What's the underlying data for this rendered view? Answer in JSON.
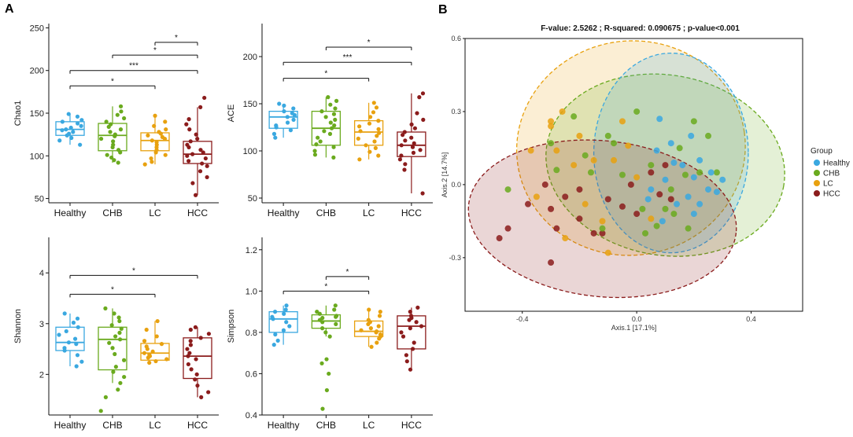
{
  "panel_a_label": "A",
  "panel_b_label": "B",
  "colors": {
    "Healthy": "#3aa8e0",
    "CHB": "#6aaa1e",
    "LC": "#e8a10f",
    "HCC": "#8b1c1c"
  },
  "chart_data": [
    {
      "type": "box",
      "ylabel": "Chao1",
      "categories": [
        "Healthy",
        "CHB",
        "LC",
        "HCC"
      ],
      "ylim": [
        45,
        255
      ],
      "yticks": [
        50,
        100,
        150,
        200,
        250
      ],
      "boxes": [
        {
          "group": "Healthy",
          "min": 113,
          "q1": 124,
          "median": 131,
          "q3": 140,
          "max": 149
        },
        {
          "group": "CHB",
          "min": 92,
          "q1": 106,
          "median": 124,
          "q3": 138,
          "max": 158
        },
        {
          "group": "LC",
          "min": 90,
          "q1": 106,
          "median": 118,
          "q3": 127,
          "max": 147
        },
        {
          "group": "HCC",
          "min": 54,
          "q1": 91,
          "median": 102,
          "q3": 117,
          "max": 157
        }
      ],
      "points": {
        "Healthy": [
          113,
          118,
          121,
          124,
          126,
          128,
          130,
          131,
          133,
          135,
          138,
          140,
          142,
          146,
          149
        ],
        "CHB": [
          92,
          95,
          98,
          101,
          104,
          107,
          110,
          113,
          117,
          120,
          123,
          125,
          128,
          131,
          134,
          137,
          140,
          144,
          148,
          152,
          158
        ],
        "LC": [
          90,
          93,
          97,
          101,
          104,
          107,
          110,
          113,
          116,
          118,
          120,
          122,
          124,
          126,
          128,
          131,
          135,
          140,
          147
        ],
        "HCC": [
          54,
          68,
          75,
          82,
          88,
          91,
          94,
          97,
          100,
          102,
          104,
          107,
          110,
          113,
          117,
          120,
          125,
          131,
          137,
          143,
          157,
          168
        ]
      },
      "comparisons": [
        {
          "from": "LC",
          "to": "HCC",
          "label": "*",
          "y": 233
        },
        {
          "from": "CHB",
          "to": "HCC",
          "label": "*",
          "y": 218
        },
        {
          "from": "Healthy",
          "to": "HCC",
          "label": "***",
          "y": 200
        },
        {
          "from": "Healthy",
          "to": "LC",
          "label": "*",
          "y": 182
        }
      ]
    },
    {
      "type": "box",
      "ylabel": "ACE",
      "categories": [
        "Healthy",
        "CHB",
        "LC",
        "HCC"
      ],
      "ylim": [
        45,
        235
      ],
      "yticks": [
        50,
        100,
        150,
        200
      ],
      "boxes": [
        {
          "group": "Healthy",
          "min": 114,
          "q1": 124,
          "median": 136,
          "q3": 142,
          "max": 150
        },
        {
          "group": "CHB",
          "min": 93,
          "q1": 106,
          "median": 124,
          "q3": 142,
          "max": 157
        },
        {
          "group": "LC",
          "min": 91,
          "q1": 106,
          "median": 120,
          "q3": 132,
          "max": 151
        },
        {
          "group": "HCC",
          "min": 55,
          "q1": 94,
          "median": 106,
          "q3": 120,
          "max": 161
        }
      ],
      "points": {
        "Healthy": [
          114,
          118,
          122,
          125,
          127,
          130,
          133,
          136,
          138,
          140,
          142,
          145,
          148,
          150
        ],
        "CHB": [
          93,
          96,
          100,
          104,
          107,
          110,
          114,
          118,
          121,
          124,
          127,
          130,
          133,
          136,
          139,
          142,
          145,
          149,
          153,
          157
        ],
        "LC": [
          91,
          95,
          99,
          103,
          106,
          110,
          113,
          116,
          119,
          121,
          123,
          126,
          129,
          132,
          136,
          141,
          146,
          151
        ],
        "HCC": [
          55,
          80,
          86,
          91,
          95,
          98,
          101,
          104,
          106,
          108,
          111,
          114,
          117,
          120,
          124,
          128,
          133,
          140,
          157,
          161
        ]
      },
      "comparisons": [
        {
          "from": "CHB",
          "to": "HCC",
          "label": "*",
          "y": 210
        },
        {
          "from": "Healthy",
          "to": "HCC",
          "label": "***",
          "y": 194
        },
        {
          "from": "Healthy",
          "to": "LC",
          "label": "*",
          "y": 177
        }
      ]
    },
    {
      "type": "box",
      "ylabel": "Shannon",
      "categories": [
        "Healthy",
        "CHB",
        "LC",
        "HCC"
      ],
      "ylim": [
        1.2,
        4.7
      ],
      "yticks": [
        2,
        3,
        4
      ],
      "boxes": [
        {
          "group": "Healthy",
          "min": 2.16,
          "q1": 2.47,
          "median": 2.63,
          "q3": 2.93,
          "max": 3.2
        },
        {
          "group": "CHB",
          "min": 1.83,
          "q1": 2.09,
          "median": 2.69,
          "q3": 2.93,
          "max": 3.3
        },
        {
          "group": "LC",
          "min": 2.23,
          "q1": 2.28,
          "median": 2.42,
          "q3": 2.61,
          "max": 3.05
        },
        {
          "group": "HCC",
          "min": 1.55,
          "q1": 1.92,
          "median": 2.36,
          "q3": 2.72,
          "max": 2.93
        }
      ],
      "points": {
        "Healthy": [
          2.16,
          2.25,
          2.38,
          2.47,
          2.52,
          2.6,
          2.63,
          2.7,
          2.78,
          2.85,
          2.93,
          3.02,
          3.1,
          3.2
        ],
        "CHB": [
          1.28,
          1.55,
          1.7,
          1.83,
          1.95,
          2.05,
          2.15,
          2.28,
          2.4,
          2.52,
          2.62,
          2.69,
          2.75,
          2.82,
          2.9,
          2.97,
          3.05,
          3.12,
          3.2,
          3.3
        ],
        "LC": [
          2.23,
          2.26,
          2.3,
          2.33,
          2.36,
          2.39,
          2.42,
          2.45,
          2.5,
          2.55,
          2.6,
          2.66,
          2.75,
          2.88,
          3.05
        ],
        "HCC": [
          1.55,
          1.65,
          1.78,
          1.9,
          2.0,
          2.1,
          2.2,
          2.3,
          2.36,
          2.42,
          2.5,
          2.58,
          2.66,
          2.72,
          2.8,
          2.88,
          2.93
        ]
      },
      "comparisons": [
        {
          "from": "Healthy",
          "to": "HCC",
          "label": "*",
          "y": 3.95
        },
        {
          "from": "Healthy",
          "to": "LC",
          "label": "*",
          "y": 3.58
        }
      ]
    },
    {
      "type": "box",
      "ylabel": "Simpson",
      "categories": [
        "Healthy",
        "CHB",
        "LC",
        "HCC"
      ],
      "ylim": [
        0.4,
        1.26
      ],
      "yticks": [
        0.4,
        0.6,
        0.8,
        1.0,
        1.2
      ],
      "ytick_labels": [
        "0.4",
        "0.6",
        "0.8",
        "1.0",
        "1.2"
      ],
      "boxes": [
        {
          "group": "Healthy",
          "min": 0.74,
          "q1": 0.8,
          "median": 0.865,
          "q3": 0.9,
          "max": 0.93
        },
        {
          "group": "CHB",
          "min": 0.78,
          "q1": 0.82,
          "median": 0.855,
          "q3": 0.885,
          "max": 0.93
        },
        {
          "group": "LC",
          "min": 0.73,
          "q1": 0.78,
          "median": 0.805,
          "q3": 0.855,
          "max": 0.91
        },
        {
          "group": "HCC",
          "min": 0.62,
          "q1": 0.72,
          "median": 0.83,
          "q3": 0.88,
          "max": 0.92
        }
      ],
      "points": {
        "Healthy": [
          0.74,
          0.76,
          0.79,
          0.81,
          0.83,
          0.85,
          0.865,
          0.875,
          0.89,
          0.9,
          0.91,
          0.93
        ],
        "CHB": [
          0.43,
          0.52,
          0.6,
          0.65,
          0.67,
          0.78,
          0.8,
          0.82,
          0.84,
          0.85,
          0.86,
          0.87,
          0.875,
          0.88,
          0.89,
          0.9,
          0.91,
          0.93
        ],
        "LC": [
          0.73,
          0.75,
          0.77,
          0.78,
          0.79,
          0.8,
          0.805,
          0.81,
          0.82,
          0.83,
          0.84,
          0.85,
          0.86,
          0.88,
          0.9,
          0.91
        ],
        "HCC": [
          0.62,
          0.66,
          0.69,
          0.72,
          0.75,
          0.78,
          0.8,
          0.82,
          0.83,
          0.85,
          0.86,
          0.87,
          0.88,
          0.9,
          0.92
        ]
      },
      "comparisons": [
        {
          "from": "CHB",
          "to": "LC",
          "label": "*",
          "y": 1.07
        },
        {
          "from": "Healthy",
          "to": "LC",
          "label": "*",
          "y": 1.0
        }
      ]
    },
    {
      "type": "scatter",
      "title": "F-value: 2.5262 ;  R-squared: 0.090675 ;  p-value<0.001",
      "xlabel": "Axis.1   [17.1%]",
      "ylabel": "Axis.2   [14.7%]",
      "xlim": [
        -0.6,
        0.58
      ],
      "ylim": [
        -0.52,
        0.6
      ],
      "xticks": [
        -0.4,
        0.0,
        0.4
      ],
      "xtick_labels": [
        "-0.4",
        "0.0",
        "0.4"
      ],
      "yticks": [
        -0.3,
        0.0,
        0.3,
        0.6
      ],
      "ytick_labels": [
        "-0.3",
        "0.0",
        "0.3",
        "0.6"
      ],
      "legend_title": "Group",
      "legend": [
        "Healthy",
        "CHB",
        "LC",
        "HCC"
      ],
      "ellipses": [
        {
          "group": "LC",
          "cx": -0.02,
          "cy": 0.15,
          "rx": 0.4,
          "ry": 0.44,
          "angle": -8
        },
        {
          "group": "CHB",
          "cx": 0.1,
          "cy": 0.08,
          "rx": 0.42,
          "ry": 0.37,
          "angle": 10
        },
        {
          "group": "Healthy",
          "cx": 0.12,
          "cy": 0.13,
          "rx": 0.27,
          "ry": 0.41,
          "angle": 0
        },
        {
          "group": "HCC",
          "cx": -0.12,
          "cy": -0.14,
          "rx": 0.47,
          "ry": 0.32,
          "angle": 6
        }
      ],
      "points": {
        "Healthy": [
          [
            0.08,
            0.27
          ],
          [
            0.12,
            0.17
          ],
          [
            0.16,
            0.08
          ],
          [
            0.2,
            0.03
          ],
          [
            0.1,
            0.02
          ],
          [
            0.05,
            -0.02
          ],
          [
            0.18,
            -0.05
          ],
          [
            0.22,
            0.1
          ],
          [
            0.25,
            -0.02
          ],
          [
            0.14,
            -0.08
          ],
          [
            0.2,
            -0.12
          ],
          [
            0.09,
            -0.15
          ],
          [
            0.26,
            0.05
          ],
          [
            0.28,
            -0.03
          ],
          [
            0.13,
            0.09
          ],
          [
            0.07,
            0.14
          ],
          [
            0.19,
            0.2
          ],
          [
            0.3,
            0.02
          ],
          [
            0.22,
            -0.08
          ],
          [
            0.04,
            -0.06
          ]
        ],
        "CHB": [
          [
            -0.45,
            -0.02
          ],
          [
            -0.3,
            0.17
          ],
          [
            -0.18,
            0.12
          ],
          [
            -0.1,
            0.2
          ],
          [
            0.0,
            0.3
          ],
          [
            0.05,
            0.08
          ],
          [
            0.1,
            -0.1
          ],
          [
            0.15,
            0.15
          ],
          [
            0.2,
            0.26
          ],
          [
            0.25,
            0.2
          ],
          [
            0.18,
            -0.18
          ],
          [
            0.02,
            -0.1
          ],
          [
            -0.05,
            0.04
          ],
          [
            0.22,
            0.05
          ],
          [
            0.12,
            -0.02
          ],
          [
            -0.22,
            0.28
          ],
          [
            0.07,
            -0.17
          ],
          [
            0.13,
            -0.12
          ],
          [
            -0.08,
            0.17
          ],
          [
            0.28,
            0.05
          ],
          [
            -0.16,
            0.05
          ],
          [
            -0.28,
            0.06
          ],
          [
            0.03,
            -0.2
          ],
          [
            -0.12,
            -0.18
          ],
          [
            0.17,
            0.04
          ]
        ],
        "LC": [
          [
            -0.3,
            0.26
          ],
          [
            -0.28,
            0.14
          ],
          [
            -0.2,
            0.2
          ],
          [
            -0.15,
            0.1
          ],
          [
            -0.35,
            -0.05
          ],
          [
            -0.25,
            -0.22
          ],
          [
            -0.12,
            -0.15
          ],
          [
            -0.05,
            0.26
          ],
          [
            -0.3,
            0.24
          ],
          [
            -0.22,
            0.08
          ],
          [
            -0.18,
            -0.08
          ],
          [
            -0.08,
            0.1
          ],
          [
            0.0,
            0.03
          ],
          [
            -0.1,
            -0.28
          ],
          [
            -0.03,
            0.16
          ],
          [
            -0.26,
            0.3
          ],
          [
            -0.37,
            0.14
          ],
          [
            0.05,
            -0.14
          ]
        ],
        "HCC": [
          [
            -0.45,
            -0.18
          ],
          [
            -0.48,
            -0.22
          ],
          [
            -0.3,
            -0.1
          ],
          [
            -0.25,
            -0.05
          ],
          [
            -0.2,
            -0.14
          ],
          [
            -0.15,
            -0.2
          ],
          [
            -0.05,
            -0.09
          ],
          [
            0.0,
            -0.12
          ],
          [
            0.05,
            0.05
          ],
          [
            0.12,
            -0.06
          ],
          [
            -0.3,
            -0.32
          ],
          [
            -0.1,
            -0.06
          ],
          [
            -0.32,
            0.0
          ],
          [
            -0.02,
            0.0
          ],
          [
            0.08,
            -0.04
          ],
          [
            -0.28,
            -0.18
          ],
          [
            -0.12,
            -0.2
          ],
          [
            -0.2,
            -0.02
          ],
          [
            0.1,
            0.08
          ],
          [
            -0.38,
            -0.08
          ]
        ]
      }
    }
  ]
}
